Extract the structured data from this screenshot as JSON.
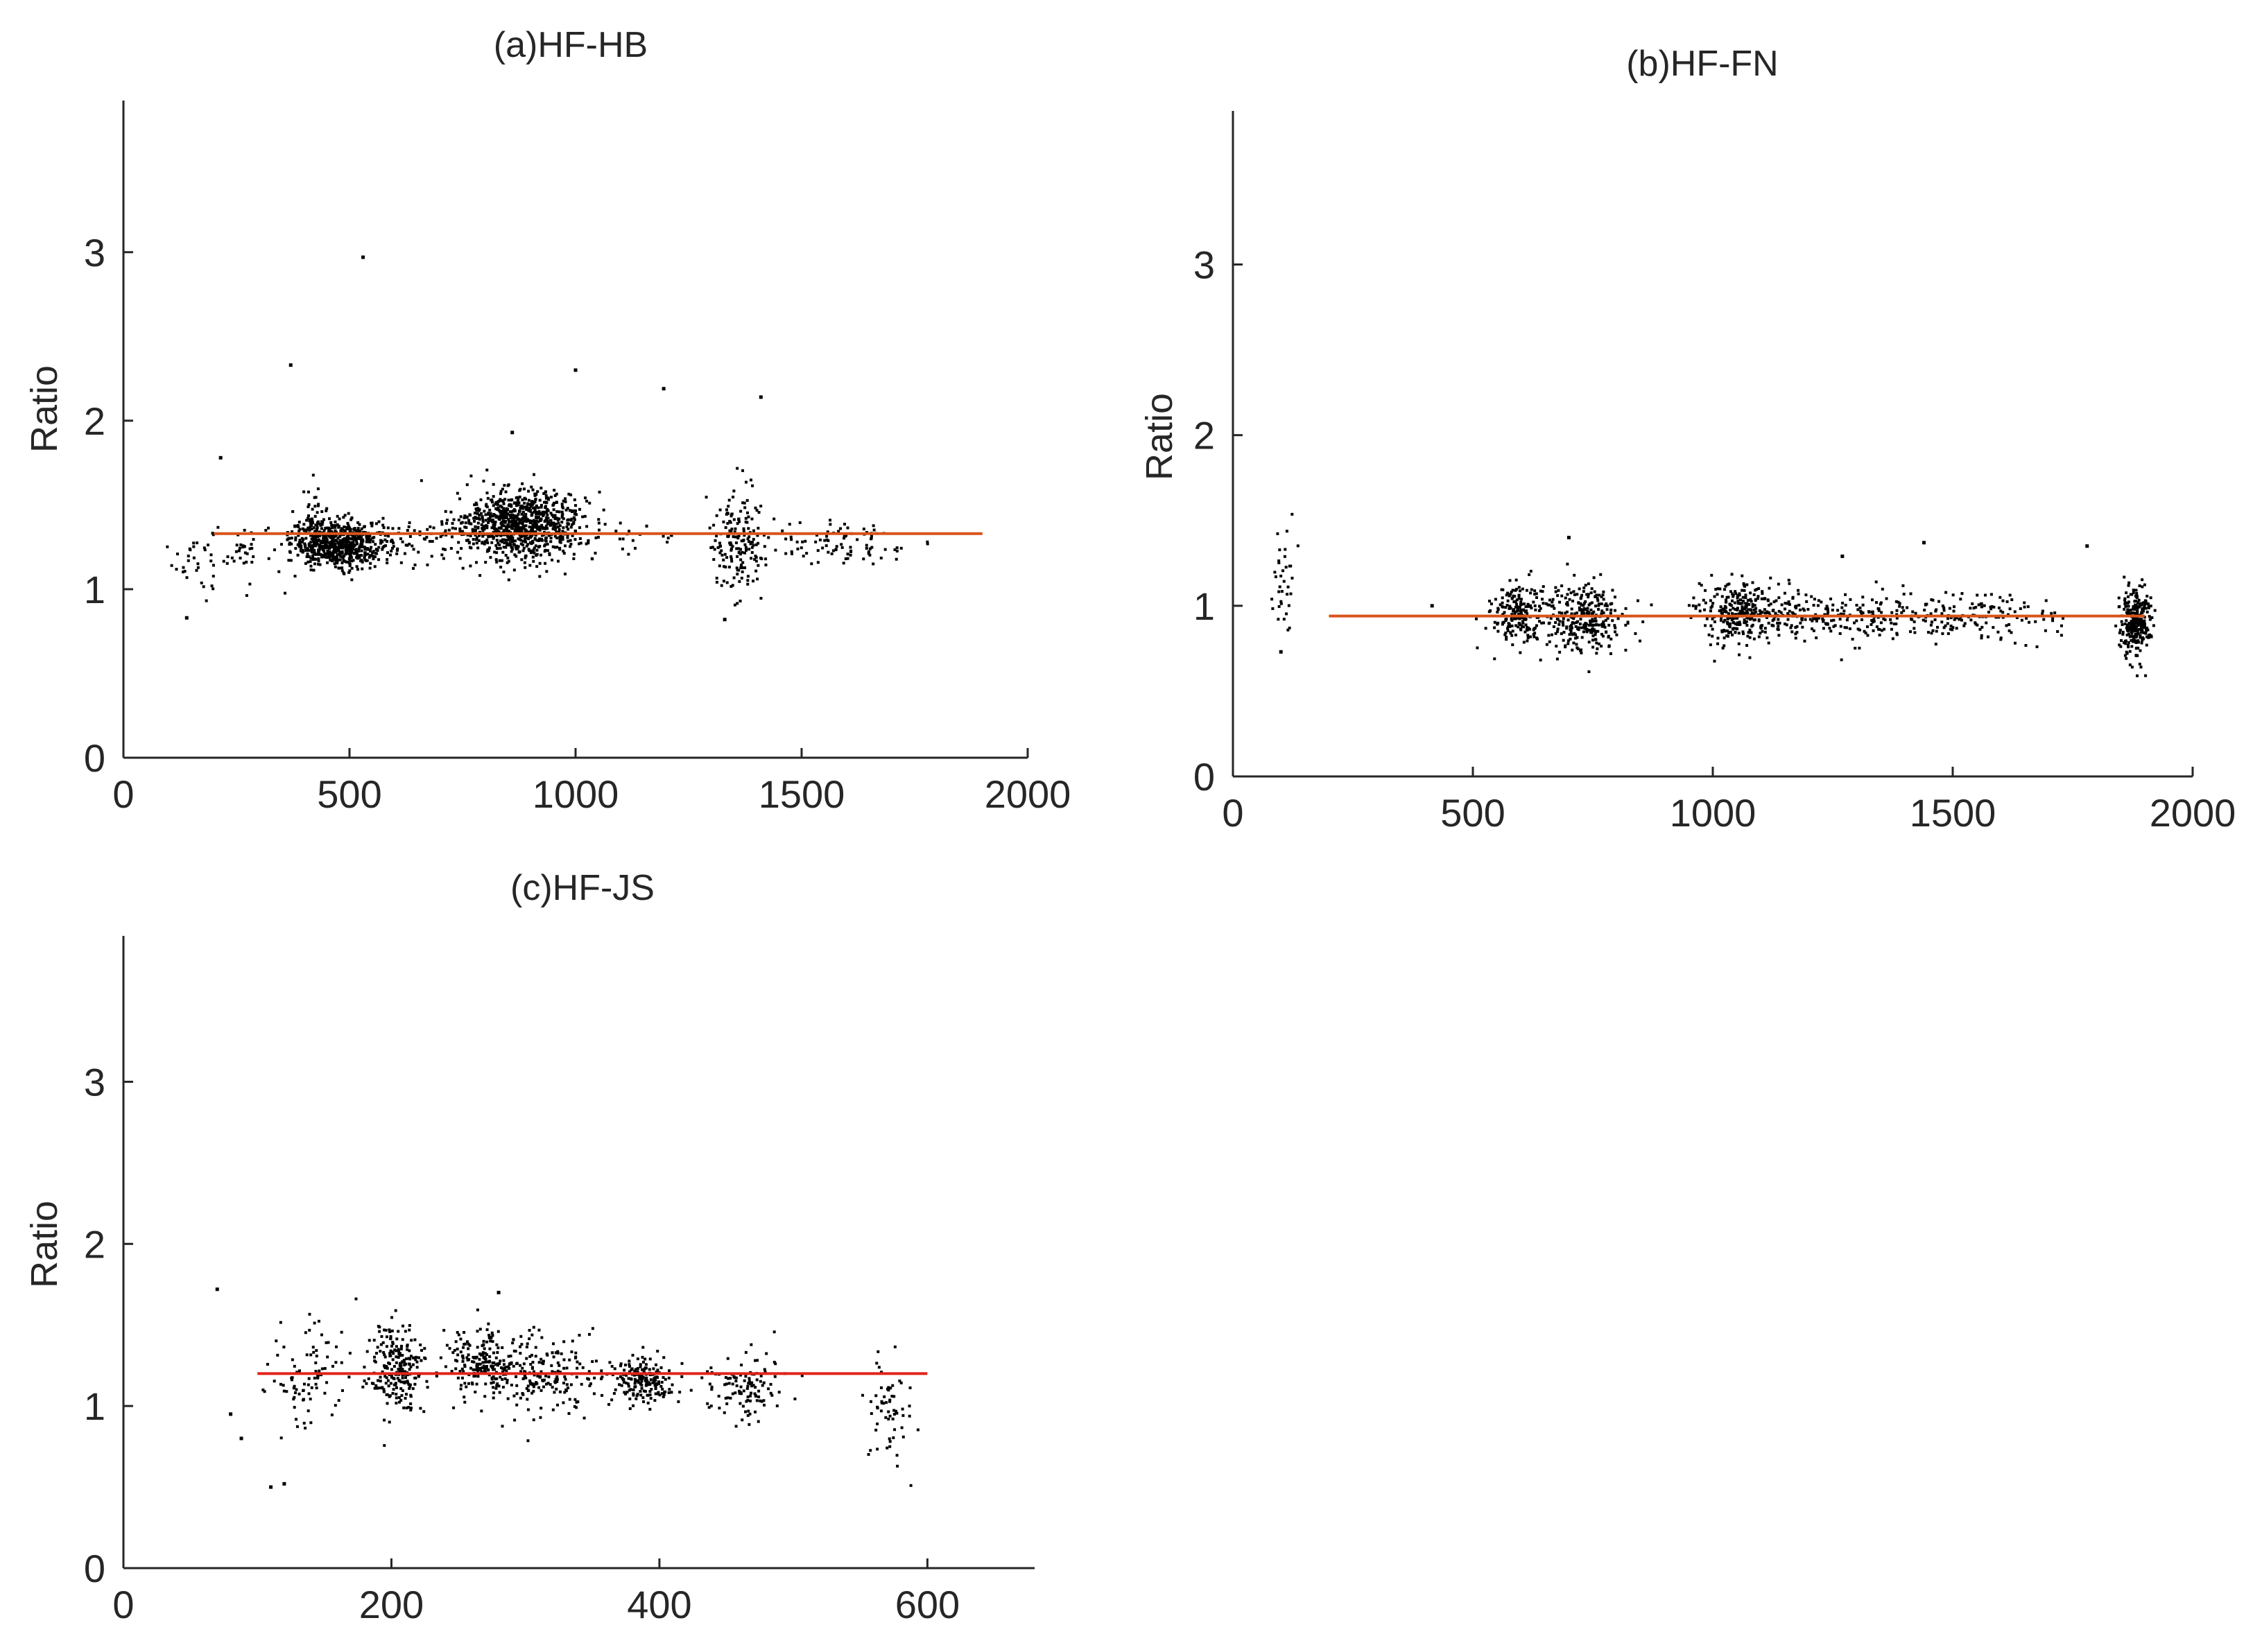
{
  "chart_data": [
    {
      "type": "scatter",
      "title": "(a)HF-HB",
      "xlabel": "",
      "ylabel": "Ratio",
      "xlim": [
        0,
        2000
      ],
      "ylim": [
        0,
        3.9
      ],
      "xticks": [
        0,
        500,
        1000,
        1500,
        2000
      ],
      "yticks": [
        0,
        1,
        2,
        3
      ],
      "grid": false,
      "clusters": [
        {
          "x": 160,
          "y": 1.18,
          "sx": 25,
          "sy": 0.12,
          "n": 30
        },
        {
          "x": 270,
          "y": 1.22,
          "sx": 60,
          "sy": 0.09,
          "n": 40
        },
        {
          "x": 480,
          "y": 1.27,
          "sx": 55,
          "sy": 0.07,
          "n": 650
        },
        {
          "x": 420,
          "y": 1.36,
          "sx": 12,
          "sy": 0.1,
          "n": 60
        },
        {
          "x": 650,
          "y": 1.3,
          "sx": 50,
          "sy": 0.06,
          "n": 40
        },
        {
          "x": 880,
          "y": 1.38,
          "sx": 70,
          "sy": 0.1,
          "n": 900
        },
        {
          "x": 1100,
          "y": 1.33,
          "sx": 80,
          "sy": 0.05,
          "n": 25
        },
        {
          "x": 1360,
          "y": 1.28,
          "sx": 30,
          "sy": 0.15,
          "n": 170
        },
        {
          "x": 1580,
          "y": 1.27,
          "sx": 80,
          "sy": 0.06,
          "n": 90
        }
      ],
      "outliers": [
        [
          530,
          2.97
        ],
        [
          370,
          2.33
        ],
        [
          1000,
          2.3
        ],
        [
          1195,
          2.19
        ],
        [
          1410,
          2.14
        ],
        [
          215,
          1.78
        ],
        [
          860,
          1.93
        ],
        [
          140,
          0.83
        ],
        [
          1330,
          0.82
        ]
      ],
      "fit_line": {
        "x": [
          200,
          1900
        ],
        "y": [
          1.33,
          1.33
        ],
        "color": "#d95319"
      },
      "point_color": "#000000"
    },
    {
      "type": "scatter",
      "title": "(b)HF-FN",
      "xlabel": "",
      "ylabel": "Ratio",
      "xlim": [
        0,
        2000
      ],
      "ylim": [
        0,
        3.9
      ],
      "xticks": [
        0,
        500,
        1000,
        1500,
        2000
      ],
      "yticks": [
        0,
        1,
        2,
        3
      ],
      "grid": false,
      "clusters": [
        {
          "x": 105,
          "y": 1.15,
          "sx": 12,
          "sy": 0.18,
          "n": 35
        },
        {
          "x": 590,
          "y": 0.96,
          "sx": 25,
          "sy": 0.09,
          "n": 180
        },
        {
          "x": 720,
          "y": 0.93,
          "sx": 50,
          "sy": 0.1,
          "n": 300
        },
        {
          "x": 1050,
          "y": 0.96,
          "sx": 40,
          "sy": 0.09,
          "n": 260
        },
        {
          "x": 1200,
          "y": 0.94,
          "sx": 100,
          "sy": 0.07,
          "n": 180
        },
        {
          "x": 1500,
          "y": 0.93,
          "sx": 150,
          "sy": 0.07,
          "n": 220
        },
        {
          "x": 1880,
          "y": 0.9,
          "sx": 15,
          "sy": 0.1,
          "n": 280
        }
      ],
      "outliers": [
        [
          700,
          1.4
        ],
        [
          1780,
          1.35
        ],
        [
          1440,
          1.37
        ],
        [
          1270,
          1.29
        ],
        [
          100,
          0.73
        ],
        [
          415,
          1.0
        ]
      ],
      "fit_line": {
        "x": [
          200,
          1900
        ],
        "y": [
          0.94,
          0.94
        ],
        "color": "#d95319"
      },
      "point_color": "#000000"
    },
    {
      "type": "scatter",
      "title": "(c)HF-JS",
      "xlabel": "",
      "ylabel": "Ratio",
      "xlim": [
        0,
        680
      ],
      "ylim": [
        0,
        3.9
      ],
      "xticks": [
        0,
        200,
        400,
        600
      ],
      "yticks": [
        0,
        1,
        2,
        3
      ],
      "grid": false,
      "clusters": [
        {
          "x": 140,
          "y": 1.2,
          "sx": 18,
          "sy": 0.18,
          "n": 90
        },
        {
          "x": 205,
          "y": 1.22,
          "sx": 10,
          "sy": 0.14,
          "n": 220
        },
        {
          "x": 265,
          "y": 1.27,
          "sx": 12,
          "sy": 0.1,
          "n": 160
        },
        {
          "x": 305,
          "y": 1.2,
          "sx": 25,
          "sy": 0.12,
          "n": 220
        },
        {
          "x": 390,
          "y": 1.15,
          "sx": 12,
          "sy": 0.08,
          "n": 180
        },
        {
          "x": 465,
          "y": 1.13,
          "sx": 15,
          "sy": 0.1,
          "n": 110
        },
        {
          "x": 570,
          "y": 0.98,
          "sx": 8,
          "sy": 0.15,
          "n": 60
        }
      ],
      "outliers": [
        [
          70,
          1.72
        ],
        [
          110,
          0.5
        ],
        [
          120,
          0.52
        ],
        [
          88,
          0.8
        ],
        [
          80,
          0.95
        ],
        [
          280,
          1.7
        ]
      ],
      "fit_line": {
        "x": [
          100,
          600
        ],
        "y": [
          1.2,
          1.2
        ],
        "color": "#e0241b"
      },
      "point_color": "#000000"
    }
  ]
}
